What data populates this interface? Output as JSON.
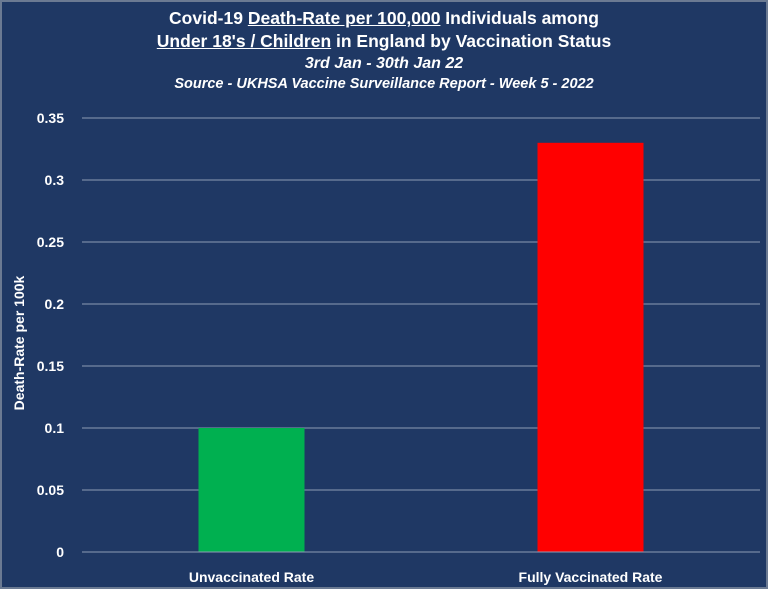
{
  "chart_data": {
    "type": "bar",
    "title_parts": [
      {
        "text": "Covid-19 ",
        "underline": false
      },
      {
        "text": "Death-Rate per 100,000",
        "underline": true
      },
      {
        "text": " Individuals among",
        "underline": false
      }
    ],
    "title_parts_2": [
      {
        "text": "Under 18's / Children",
        "underline": true
      },
      {
        "text": " in England by Vaccination Status",
        "underline": false
      }
    ],
    "subtitle": "3rd Jan - 30th Jan 22",
    "source": "Source - UKHSA Vaccine Surveillance Report - Week 5 - 2022",
    "xlabel": "",
    "ylabel": "Death-Rate per 100k",
    "categories": [
      "Unvaccinated Rate",
      "Fully Vaccinated Rate"
    ],
    "values": [
      0.1,
      0.33
    ],
    "colors": [
      "#00b050",
      "#ff0000"
    ],
    "ylim": [
      0,
      0.35
    ],
    "yticks": [
      0,
      0.05,
      0.1,
      0.15,
      0.2,
      0.25,
      0.3,
      0.35
    ],
    "ytick_labels": [
      "0",
      "0.05",
      "0.1",
      "0.15",
      "0.2",
      "0.25",
      "0.3",
      "0.35"
    ],
    "grid": true,
    "legend": "none"
  },
  "style": {
    "background": "#1f3864",
    "text_color": "#ffffff",
    "gridline_color": "#8e9bb5"
  }
}
